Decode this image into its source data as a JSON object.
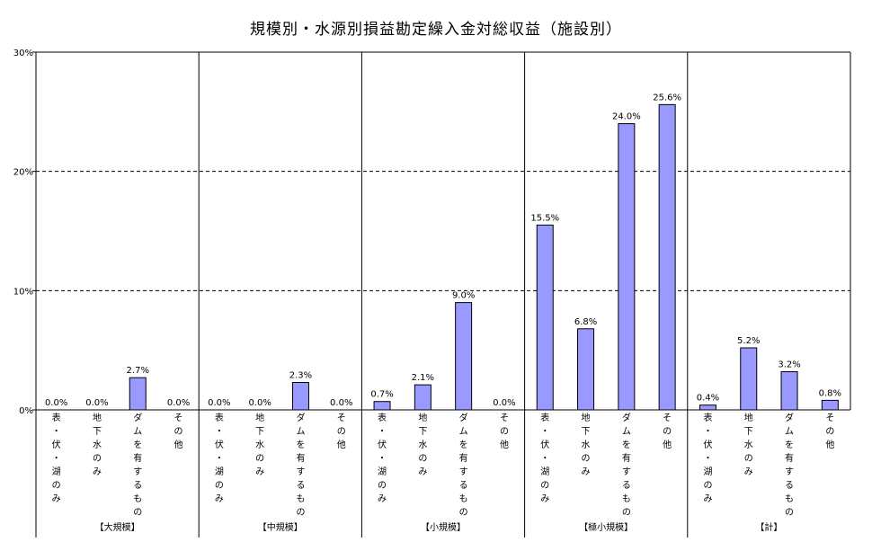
{
  "chart_data": {
    "type": "bar",
    "title": "規模別・水源別損益勘定繰入金対総収益（施設別）",
    "ylim": [
      0,
      30
    ],
    "yticks": [
      "0%",
      "10%",
      "20%",
      "30%"
    ],
    "ytick_values": [
      0,
      10,
      20,
      30
    ],
    "grid": "horizontal-dashed",
    "bar_color": "#9999ff",
    "value_suffix": "%",
    "groups": [
      {
        "name": "【大規模】",
        "categories": [
          "表・伏・湖のみ",
          "地下水のみ",
          "ダムを有するもの",
          "その他"
        ],
        "values": [
          0.0,
          0.0,
          2.7,
          0.0
        ],
        "labels": [
          "0.0%",
          "0.0%",
          "2.7%",
          "0.0%"
        ]
      },
      {
        "name": "【中規模】",
        "categories": [
          "表・伏・湖のみ",
          "地下水のみ",
          "ダムを有するもの",
          "その他"
        ],
        "values": [
          0.0,
          0.0,
          2.3,
          0.0
        ],
        "labels": [
          "0.0%",
          "0.0%",
          "2.3%",
          "0.0%"
        ]
      },
      {
        "name": "【小規模】",
        "categories": [
          "表・伏・湖のみ",
          "地下水のみ",
          "ダムを有するもの",
          "その他"
        ],
        "values": [
          0.7,
          2.1,
          9.0,
          0.0
        ],
        "labels": [
          "0.7%",
          "2.1%",
          "9.0%",
          "0.0%"
        ]
      },
      {
        "name": "【極小規模】",
        "categories": [
          "表・伏・湖のみ",
          "地下水のみ",
          "ダムを有するもの",
          "その他"
        ],
        "values": [
          15.5,
          6.8,
          24.0,
          25.6
        ],
        "labels": [
          "15.5%",
          "6.8%",
          "24.0%",
          "25.6%"
        ]
      },
      {
        "name": "【計】",
        "categories": [
          "表・伏・湖のみ",
          "地下水のみ",
          "ダムを有するもの",
          "その他"
        ],
        "values": [
          0.4,
          5.2,
          3.2,
          0.8
        ],
        "labels": [
          "0.4%",
          "5.2%",
          "3.2%",
          "0.8%"
        ]
      }
    ]
  }
}
